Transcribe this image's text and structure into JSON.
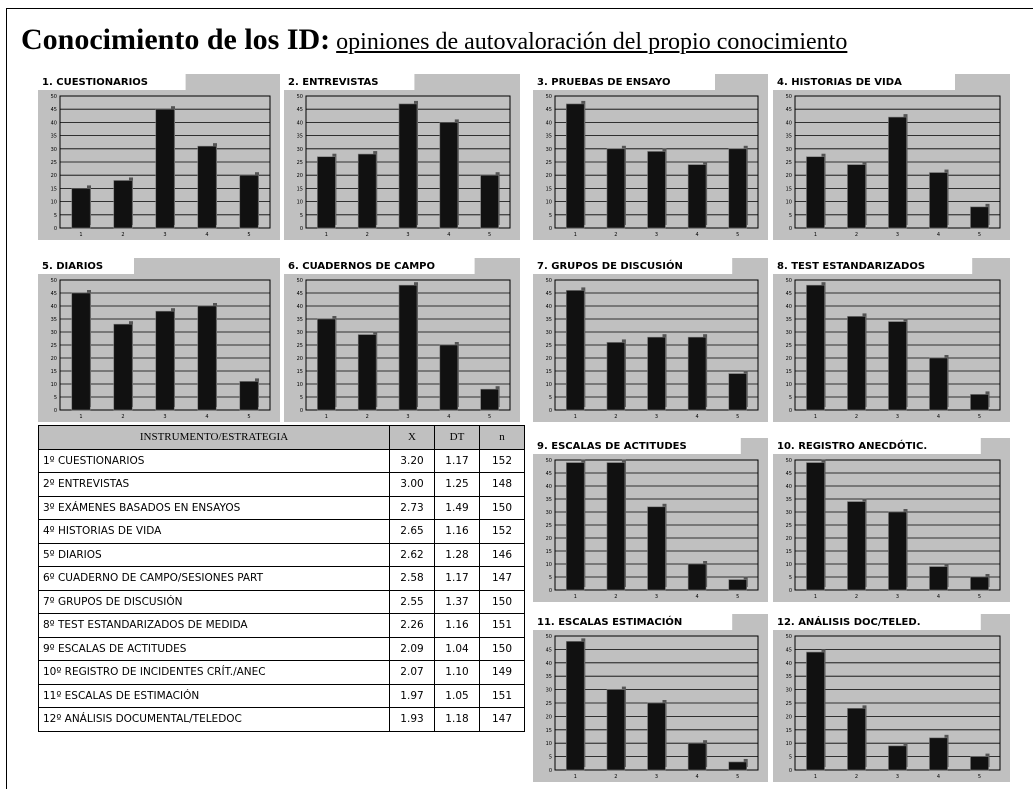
{
  "title": "Conocimiento de los ID:",
  "subtitle": "opiniones de autovaloración del propio conocimiento",
  "chart_data": [
    {
      "type": "bar",
      "title": "1. CUESTIONARIOS",
      "categories": [
        "1",
        "2",
        "3",
        "4",
        "5"
      ],
      "values": [
        15,
        18,
        45,
        31,
        20
      ],
      "color": "#111111",
      "ylim": [
        0,
        50
      ],
      "yticks": [
        0,
        5,
        10,
        15,
        20,
        25,
        30,
        35,
        40,
        45,
        50
      ],
      "grid": true
    },
    {
      "type": "bar",
      "title": "2. ENTREVISTAS",
      "categories": [
        "1",
        "2",
        "3",
        "4",
        "5"
      ],
      "values": [
        27,
        28,
        47,
        40,
        20
      ],
      "color": "#111111",
      "ylim": [
        0,
        50
      ],
      "yticks": [
        0,
        5,
        10,
        15,
        20,
        25,
        30,
        35,
        40,
        45,
        50
      ],
      "grid": true
    },
    {
      "type": "bar",
      "title": "3. PRUEBAS DE ENSAYO",
      "categories": [
        "1",
        "2",
        "3",
        "4",
        "5"
      ],
      "values": [
        47,
        30,
        29,
        24,
        30
      ],
      "color": "#111111",
      "ylim": [
        0,
        50
      ],
      "yticks": [
        0,
        5,
        10,
        15,
        20,
        25,
        30,
        35,
        40,
        45,
        50
      ],
      "grid": true
    },
    {
      "type": "bar",
      "title": "4. HISTORIAS DE VIDA",
      "categories": [
        "1",
        "2",
        "3",
        "4",
        "5"
      ],
      "values": [
        27,
        24,
        42,
        21,
        8
      ],
      "color": "#111111",
      "ylim": [
        0,
        50
      ],
      "yticks": [
        0,
        5,
        10,
        15,
        20,
        25,
        30,
        35,
        40,
        45,
        50
      ],
      "grid": true
    },
    {
      "type": "bar",
      "title": "5. DIARIOS",
      "categories": [
        "1",
        "2",
        "3",
        "4",
        "5"
      ],
      "values": [
        45,
        33,
        38,
        40,
        11
      ],
      "color": "#111111",
      "ylim": [
        0,
        50
      ],
      "yticks": [
        0,
        5,
        10,
        15,
        20,
        25,
        30,
        35,
        40,
        45,
        50
      ],
      "grid": true
    },
    {
      "type": "bar",
      "title": "6. CUADERNOS DE CAMPO",
      "categories": [
        "1",
        "2",
        "3",
        "4",
        "5"
      ],
      "values": [
        35,
        29,
        48,
        25,
        8
      ],
      "color": "#111111",
      "ylim": [
        0,
        50
      ],
      "yticks": [
        0,
        5,
        10,
        15,
        20,
        25,
        30,
        35,
        40,
        45,
        50
      ],
      "grid": true
    },
    {
      "type": "bar",
      "title": "7. GRUPOS DE DISCUSIÓN",
      "categories": [
        "1",
        "2",
        "3",
        "4",
        "5"
      ],
      "values": [
        46,
        26,
        28,
        28,
        14
      ],
      "color": "#111111",
      "ylim": [
        0,
        50
      ],
      "yticks": [
        0,
        5,
        10,
        15,
        20,
        25,
        30,
        35,
        40,
        45,
        50
      ],
      "grid": true
    },
    {
      "type": "bar",
      "title": "8. TEST ESTANDARIZADOS",
      "categories": [
        "1",
        "2",
        "3",
        "4",
        "5"
      ],
      "values": [
        48,
        36,
        34,
        20,
        6
      ],
      "color": "#111111",
      "ylim": [
        0,
        50
      ],
      "yticks": [
        0,
        5,
        10,
        15,
        20,
        25,
        30,
        35,
        40,
        45,
        50
      ],
      "grid": true
    },
    {
      "type": "bar",
      "title": "9. ESCALAS DE ACTITUDES",
      "categories": [
        "1",
        "2",
        "3",
        "4",
        "5"
      ],
      "values": [
        49,
        49,
        32,
        10,
        4
      ],
      "color": "#111111",
      "ylim": [
        0,
        50
      ],
      "yticks": [
        0,
        5,
        10,
        15,
        20,
        25,
        30,
        35,
        40,
        45,
        50
      ],
      "grid": true
    },
    {
      "type": "bar",
      "title": "10. REGISTRO ANECDÓTIC.",
      "categories": [
        "1",
        "2",
        "3",
        "4",
        "5"
      ],
      "values": [
        49,
        34,
        30,
        9,
        5
      ],
      "color": "#111111",
      "ylim": [
        0,
        50
      ],
      "yticks": [
        0,
        5,
        10,
        15,
        20,
        25,
        30,
        35,
        40,
        45,
        50
      ],
      "grid": true
    },
    {
      "type": "bar",
      "title": "11. ESCALAS ESTIMACIÓN",
      "categories": [
        "1",
        "2",
        "3",
        "4",
        "5"
      ],
      "values": [
        48,
        30,
        25,
        10,
        3
      ],
      "color": "#111111",
      "ylim": [
        0,
        50
      ],
      "yticks": [
        0,
        5,
        10,
        15,
        20,
        25,
        30,
        35,
        40,
        45,
        50
      ],
      "grid": true
    },
    {
      "type": "bar",
      "title": "12. ANÁLISIS DOC/TELED.",
      "categories": [
        "1",
        "2",
        "3",
        "4",
        "5"
      ],
      "values": [
        44,
        23,
        9,
        12,
        5
      ],
      "color": "#111111",
      "ylim": [
        0,
        50
      ],
      "yticks": [
        0,
        5,
        10,
        15,
        20,
        25,
        30,
        35,
        40,
        45,
        50
      ],
      "grid": true
    }
  ],
  "table": {
    "header": [
      "INSTRUMENTO/ESTRATEGIA",
      "X",
      "DT",
      "n"
    ],
    "rows": [
      [
        "1º CUESTIONARIOS",
        "3.20",
        "1.17",
        "152"
      ],
      [
        "2º ENTREVISTAS",
        "3.00",
        "1.25",
        "148"
      ],
      [
        "3º EXÁMENES BASADOS EN ENSAYOS",
        "2.73",
        "1.49",
        "150"
      ],
      [
        "4º HISTORIAS DE VIDA",
        "2.65",
        "1.16",
        "152"
      ],
      [
        "5º DIARIOS",
        "2.62",
        "1.28",
        "146"
      ],
      [
        "6º CUADERNO DE CAMPO/SESIONES PART",
        "2.58",
        "1.17",
        "147"
      ],
      [
        "7º GRUPOS DE DISCUSIÓN",
        "2.55",
        "1.37",
        "150"
      ],
      [
        "8º TEST ESTANDARIZADOS DE MEDIDA",
        "2.26",
        "1.16",
        "151"
      ],
      [
        "9º ESCALAS DE ACTITUDES",
        "2.09",
        "1.04",
        "150"
      ],
      [
        "10º REGISTRO DE INCIDENTES CRÍT./ANEC",
        "2.07",
        "1.10",
        "149"
      ],
      [
        "11º ESCALAS DE ESTIMACIÓN",
        "1.97",
        "1.05",
        "151"
      ],
      [
        "12º ANÁLISIS DOCUMENTAL/TELEDOC",
        "1.93",
        "1.18",
        "147"
      ]
    ]
  }
}
